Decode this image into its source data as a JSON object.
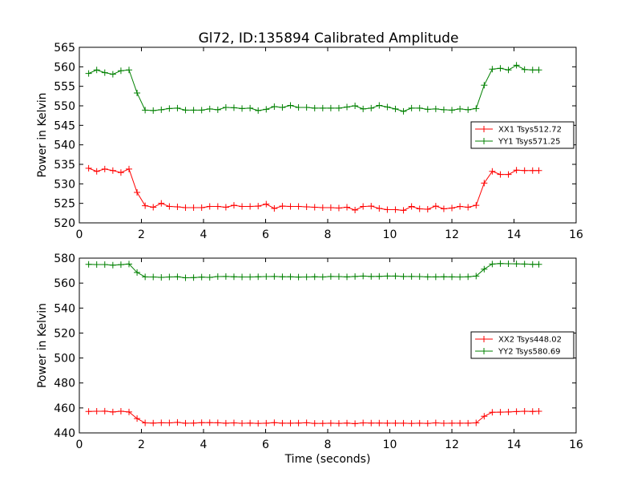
{
  "figure": {
    "title": "Gl72, ID:135894 Calibrated Amplitude"
  },
  "chart_data": [
    {
      "type": "line",
      "title": "Gl72, ID:135894 Calibrated Amplitude",
      "xlabel": "",
      "ylabel": "Power in Kelvin",
      "xlim": [
        0,
        16
      ],
      "ylim": [
        520,
        565
      ],
      "xticks": [
        0,
        2,
        4,
        6,
        8,
        10,
        12,
        14,
        16
      ],
      "yticks": [
        520,
        525,
        530,
        535,
        540,
        545,
        550,
        555,
        560,
        565
      ],
      "grid": false,
      "legend": "center-right",
      "marker": "+",
      "x": [
        0.3,
        0.56,
        0.82,
        1.08,
        1.34,
        1.6,
        1.86,
        2.12,
        2.38,
        2.64,
        2.9,
        3.16,
        3.42,
        3.68,
        3.94,
        4.2,
        4.46,
        4.72,
        4.98,
        5.24,
        5.5,
        5.76,
        6.02,
        6.28,
        6.54,
        6.8,
        7.06,
        7.32,
        7.58,
        7.84,
        8.1,
        8.36,
        8.62,
        8.88,
        9.14,
        9.4,
        9.66,
        9.92,
        10.18,
        10.44,
        10.7,
        10.96,
        11.22,
        11.48,
        11.74,
        12.0,
        12.26,
        12.52,
        12.78,
        13.04,
        13.3,
        13.56,
        13.82,
        14.08,
        14.34,
        14.6,
        14.8
      ],
      "series": [
        {
          "name": "XX1 Tsys512.72",
          "color": "#ff0000",
          "values": [
            534.0,
            533.2,
            533.8,
            533.4,
            532.9,
            533.8,
            527.8,
            524.4,
            524.0,
            525.0,
            524.2,
            524.1,
            523.9,
            523.9,
            523.9,
            524.2,
            524.2,
            524.0,
            524.5,
            524.2,
            524.2,
            524.3,
            524.8,
            523.7,
            524.3,
            524.2,
            524.2,
            524.1,
            524.0,
            523.9,
            523.9,
            523.8,
            524.0,
            523.3,
            524.2,
            524.3,
            523.7,
            523.4,
            523.4,
            523.2,
            524.2,
            523.6,
            523.5,
            524.3,
            523.6,
            523.8,
            524.2,
            524.0,
            524.5,
            530.2,
            533.2,
            532.4,
            532.4,
            533.5,
            533.4,
            533.4,
            533.4
          ]
        },
        {
          "name": "YY1 Tsys571.25",
          "color": "#008000",
          "values": [
            558.3,
            559.2,
            558.5,
            558.1,
            559.0,
            559.2,
            553.3,
            548.9,
            548.8,
            549.0,
            549.3,
            549.4,
            548.9,
            548.9,
            548.9,
            549.2,
            549.0,
            549.6,
            549.5,
            549.3,
            549.4,
            548.8,
            549.1,
            549.8,
            549.6,
            550.1,
            549.6,
            549.6,
            549.4,
            549.4,
            549.4,
            549.4,
            549.7,
            550.0,
            549.2,
            549.4,
            550.1,
            549.7,
            549.2,
            548.6,
            549.4,
            549.4,
            549.1,
            549.2,
            549.0,
            548.9,
            549.2,
            549.0,
            549.3,
            555.3,
            559.4,
            559.6,
            559.2,
            560.4,
            559.3,
            559.2,
            559.2
          ]
        }
      ]
    },
    {
      "type": "line",
      "title": "",
      "xlabel": "Time (seconds)",
      "ylabel": "Power in Kelvin",
      "xlim": [
        0,
        16
      ],
      "ylim": [
        440,
        580
      ],
      "xticks": [
        0,
        2,
        4,
        6,
        8,
        10,
        12,
        14,
        16
      ],
      "yticks": [
        440,
        460,
        480,
        500,
        520,
        540,
        560,
        580
      ],
      "grid": false,
      "legend": "center-right",
      "marker": "+",
      "x": [
        0.3,
        0.56,
        0.82,
        1.08,
        1.34,
        1.6,
        1.86,
        2.12,
        2.38,
        2.64,
        2.9,
        3.16,
        3.42,
        3.68,
        3.94,
        4.2,
        4.46,
        4.72,
        4.98,
        5.24,
        5.5,
        5.76,
        6.02,
        6.28,
        6.54,
        6.8,
        7.06,
        7.32,
        7.58,
        7.84,
        8.1,
        8.36,
        8.62,
        8.88,
        9.14,
        9.4,
        9.66,
        9.92,
        10.18,
        10.44,
        10.7,
        10.96,
        11.22,
        11.48,
        11.74,
        12.0,
        12.26,
        12.52,
        12.78,
        13.04,
        13.3,
        13.56,
        13.82,
        14.08,
        14.34,
        14.6,
        14.8
      ],
      "series": [
        {
          "name": "XX2 Tsys448.02",
          "color": "#ff0000",
          "values": [
            457.2,
            457.3,
            457.4,
            456.8,
            457.3,
            456.8,
            451.5,
            448.0,
            447.9,
            448.1,
            448.0,
            448.4,
            447.8,
            447.9,
            448.2,
            448.2,
            448.1,
            447.8,
            448.0,
            447.7,
            447.9,
            447.6,
            447.8,
            448.2,
            447.8,
            447.8,
            447.9,
            448.1,
            447.6,
            447.6,
            447.8,
            447.6,
            447.9,
            447.5,
            448.0,
            447.9,
            447.9,
            447.8,
            447.8,
            447.8,
            447.6,
            447.8,
            447.6,
            448.0,
            447.7,
            447.8,
            447.8,
            447.8,
            448.0,
            453.3,
            456.5,
            456.6,
            456.8,
            457.1,
            457.3,
            457.2,
            457.3
          ]
        },
        {
          "name": "YY2 Tsys580.69",
          "color": "#008000",
          "values": [
            575.0,
            574.9,
            574.9,
            574.4,
            574.8,
            575.3,
            568.5,
            565.0,
            564.9,
            564.6,
            564.9,
            565.1,
            564.3,
            564.4,
            564.8,
            564.6,
            565.2,
            565.3,
            565.1,
            564.9,
            564.9,
            565.1,
            565.2,
            565.3,
            565.1,
            565.1,
            564.8,
            564.9,
            565.1,
            564.9,
            565.3,
            565.2,
            565.0,
            565.3,
            565.6,
            565.3,
            565.4,
            565.6,
            565.6,
            565.3,
            565.3,
            565.2,
            565.0,
            565.0,
            565.1,
            565.0,
            564.9,
            565.1,
            565.6,
            571.2,
            575.3,
            575.7,
            575.5,
            575.4,
            575.3,
            575.0,
            575.0
          ]
        }
      ]
    }
  ]
}
